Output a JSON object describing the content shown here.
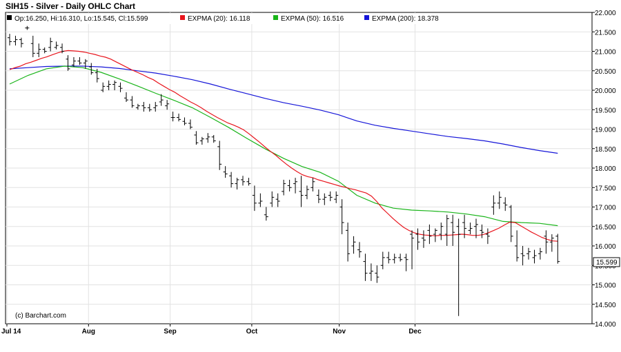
{
  "chart_data": {
    "type": "ohlc",
    "title": "SIH15 - Silver - Daily OHLC Chart",
    "legend": [
      {
        "label": "Op:16.250, Hi:16.310, Lo:15.545, Cl:15.599",
        "color": "#000000"
      },
      {
        "label": "EXPMA (20): 16.118",
        "color": "#e8141c"
      },
      {
        "label": "EXPMA (50): 16.516",
        "color": "#18b418"
      },
      {
        "label": "EXPMA (200): 18.378",
        "color": "#1414d8"
      }
    ],
    "copyright": "(c) Barchart.com",
    "last_price": "15.599",
    "ylim": [
      14.0,
      22.0
    ],
    "y_ticks": [
      "22.000",
      "21.500",
      "21.000",
      "20.500",
      "20.000",
      "19.500",
      "19.000",
      "18.500",
      "18.000",
      "17.500",
      "17.000",
      "16.500",
      "16.000",
      "15.500",
      "15.000",
      "14.500",
      "14.000"
    ],
    "x_ticks": [
      {
        "label": "Jul 14",
        "bar": 0
      },
      {
        "label": "Aug",
        "bar": 14
      },
      {
        "label": "Sep",
        "bar": 28
      },
      {
        "label": "Oct",
        "bar": 42
      },
      {
        "label": "Nov",
        "bar": 57
      },
      {
        "label": "Dec",
        "bar": 70
      }
    ],
    "grid": true,
    "bars": [
      [
        21.35,
        21.45,
        21.15,
        21.25
      ],
      [
        21.25,
        21.4,
        21.15,
        21.3
      ],
      [
        21.3,
        21.35,
        21.1,
        21.2
      ],
      [
        21.6,
        21.65,
        21.55,
        21.6
      ],
      [
        21.2,
        21.4,
        20.85,
        20.95
      ],
      [
        20.95,
        21.2,
        20.85,
        21.05
      ],
      [
        21.05,
        21.1,
        20.95,
        21.0
      ],
      [
        21.1,
        21.35,
        21.0,
        21.25
      ],
      [
        21.1,
        21.25,
        21.05,
        21.15
      ],
      [
        21.1,
        21.2,
        20.95,
        21.0
      ],
      [
        20.8,
        20.9,
        20.5,
        20.55
      ],
      [
        20.65,
        20.85,
        20.6,
        20.75
      ],
      [
        20.75,
        20.85,
        20.65,
        20.7
      ],
      [
        20.7,
        20.8,
        20.55,
        20.75
      ],
      [
        20.6,
        20.7,
        20.4,
        20.45
      ],
      [
        20.45,
        20.55,
        20.2,
        20.3
      ],
      [
        20.0,
        20.2,
        19.95,
        20.1
      ],
      [
        20.1,
        20.25,
        20.0,
        20.15
      ],
      [
        20.15,
        20.25,
        20.0,
        20.2
      ],
      [
        20.1,
        20.2,
        19.95,
        20.05
      ],
      [
        19.8,
        19.95,
        19.7,
        19.75
      ],
      [
        19.75,
        19.85,
        19.55,
        19.6
      ],
      [
        19.55,
        19.65,
        19.5,
        19.6
      ],
      [
        19.6,
        19.7,
        19.45,
        19.55
      ],
      [
        19.55,
        19.65,
        19.45,
        19.5
      ],
      [
        19.55,
        19.7,
        19.45,
        19.6
      ],
      [
        19.7,
        19.9,
        19.6,
        19.75
      ],
      [
        19.6,
        19.75,
        19.5,
        19.65
      ],
      [
        19.3,
        19.45,
        19.2,
        19.3
      ],
      [
        19.3,
        19.4,
        19.2,
        19.25
      ],
      [
        19.2,
        19.3,
        19.1,
        19.15
      ],
      [
        19.15,
        19.25,
        19.0,
        19.05
      ],
      [
        18.85,
        18.95,
        18.6,
        18.65
      ],
      [
        18.7,
        18.8,
        18.6,
        18.75
      ],
      [
        18.75,
        18.9,
        18.65,
        18.8
      ],
      [
        18.8,
        18.85,
        18.65,
        18.7
      ],
      [
        18.55,
        18.7,
        17.95,
        18.1
      ],
      [
        17.9,
        18.05,
        17.75,
        17.85
      ],
      [
        17.8,
        17.9,
        17.5,
        17.6
      ],
      [
        17.6,
        17.75,
        17.45,
        17.7
      ],
      [
        17.7,
        17.8,
        17.55,
        17.65
      ],
      [
        17.65,
        17.75,
        17.55,
        17.6
      ],
      [
        17.3,
        17.55,
        16.9,
        17.1
      ],
      [
        17.1,
        17.35,
        17.0,
        17.15
      ],
      [
        16.8,
        17.0,
        16.65,
        16.75
      ],
      [
        17.1,
        17.4,
        17.0,
        17.25
      ],
      [
        17.2,
        17.35,
        17.0,
        17.15
      ],
      [
        17.4,
        17.7,
        17.3,
        17.6
      ],
      [
        17.55,
        17.7,
        17.4,
        17.5
      ],
      [
        17.6,
        17.75,
        17.35,
        17.65
      ],
      [
        17.4,
        17.8,
        17.0,
        17.3
      ],
      [
        17.3,
        17.55,
        17.2,
        17.45
      ],
      [
        17.5,
        17.75,
        17.4,
        17.65
      ],
      [
        17.3,
        17.45,
        17.1,
        17.2
      ],
      [
        17.2,
        17.35,
        17.05,
        17.25
      ],
      [
        17.3,
        17.4,
        17.15,
        17.25
      ],
      [
        17.2,
        17.4,
        17.1,
        17.3
      ],
      [
        17.0,
        17.2,
        16.3,
        16.6
      ],
      [
        16.4,
        16.6,
        15.6,
        15.8
      ],
      [
        16.0,
        16.25,
        15.8,
        16.1
      ],
      [
        15.9,
        16.1,
        15.7,
        15.85
      ],
      [
        15.6,
        15.8,
        15.1,
        15.3
      ],
      [
        15.3,
        15.55,
        15.1,
        15.35
      ],
      [
        15.3,
        15.5,
        15.05,
        15.2
      ],
      [
        15.5,
        15.85,
        15.4,
        15.7
      ],
      [
        15.7,
        15.85,
        15.55,
        15.65
      ],
      [
        15.65,
        15.8,
        15.55,
        15.7
      ],
      [
        15.7,
        15.8,
        15.6,
        15.65
      ],
      [
        15.7,
        15.8,
        15.35,
        15.65
      ],
      [
        16.3,
        16.4,
        15.4,
        16.2
      ],
      [
        16.3,
        16.45,
        15.9,
        16.1
      ],
      [
        16.2,
        16.4,
        15.95,
        16.15
      ],
      [
        16.4,
        16.55,
        16.05,
        16.25
      ],
      [
        16.3,
        16.45,
        16.1,
        16.4
      ],
      [
        16.3,
        16.6,
        16.15,
        16.5
      ],
      [
        16.3,
        16.8,
        16.0,
        16.7
      ],
      [
        16.6,
        16.8,
        16.0,
        16.35
      ],
      [
        16.5,
        16.7,
        14.2,
        16.3
      ],
      [
        16.6,
        16.8,
        16.2,
        16.45
      ],
      [
        16.4,
        16.6,
        16.3,
        16.45
      ],
      [
        16.5,
        16.7,
        16.2,
        16.55
      ],
      [
        16.4,
        16.55,
        16.2,
        16.35
      ],
      [
        16.3,
        16.45,
        16.05,
        16.25
      ],
      [
        17.0,
        17.3,
        16.8,
        17.1
      ],
      [
        17.1,
        17.4,
        16.95,
        17.25
      ],
      [
        17.1,
        17.25,
        16.9,
        17.05
      ],
      [
        17.0,
        17.05,
        16.1,
        16.25
      ],
      [
        16.0,
        16.4,
        15.6,
        15.7
      ],
      [
        15.8,
        16.0,
        15.5,
        15.75
      ],
      [
        15.8,
        15.95,
        15.65,
        15.85
      ],
      [
        15.7,
        15.9,
        15.55,
        15.75
      ],
      [
        15.8,
        15.95,
        15.65,
        15.85
      ],
      [
        16.25,
        16.4,
        15.8,
        16.1
      ],
      [
        16.1,
        16.3,
        15.85,
        16.2
      ],
      [
        16.25,
        16.31,
        15.545,
        15.599
      ]
    ],
    "ema20": [
      20.53,
      20.58,
      20.62,
      20.68,
      20.72,
      20.77,
      20.82,
      20.86,
      20.91,
      20.96,
      21.0,
      21.02,
      21.01,
      21.0,
      20.98,
      20.95,
      20.92,
      20.88,
      20.85,
      20.8,
      20.73,
      20.66,
      20.59,
      20.52,
      20.46,
      20.4,
      20.33,
      20.27,
      20.18,
      20.1,
      20.02,
      19.95,
      19.86,
      19.78,
      19.7,
      19.63,
      19.55,
      19.46,
      19.38,
      19.3,
      19.23,
      19.16,
      19.11,
      19.05,
      18.98,
      18.88,
      18.77,
      18.66,
      18.54,
      18.43,
      18.33,
      18.21,
      18.1,
      18.0,
      17.91,
      17.83,
      17.78,
      17.75,
      17.7,
      17.66,
      17.62,
      17.58,
      17.54,
      17.51,
      17.47,
      17.44,
      17.4,
      17.36,
      17.28,
      17.14,
      16.97,
      16.84,
      16.71,
      16.59,
      16.48,
      16.4,
      16.34,
      16.3,
      16.28,
      16.27,
      16.26,
      16.27,
      16.27,
      16.28,
      16.29,
      16.3,
      16.29,
      16.27,
      16.27,
      16.29,
      16.34,
      16.4,
      16.46,
      16.54,
      16.61,
      16.6,
      16.52,
      16.44,
      16.36,
      16.29,
      16.22,
      16.17,
      16.13,
      16.12
    ],
    "ema50": [
      20.16,
      20.38,
      20.55,
      20.62,
      20.58,
      20.46,
      20.29,
      20.11,
      19.92,
      19.74,
      19.55,
      19.3,
      19.04,
      18.76,
      18.49,
      18.25,
      18.04,
      17.89,
      17.66,
      17.3,
      17.1,
      16.97,
      16.92,
      16.9,
      16.87,
      16.82,
      16.75,
      16.63,
      16.6,
      16.58,
      16.52
    ],
    "ema200": [
      20.55,
      20.58,
      20.61,
      20.62,
      20.62,
      20.6,
      20.56,
      20.5,
      20.44,
      20.36,
      20.27,
      20.16,
      20.03,
      19.91,
      19.79,
      19.68,
      19.59,
      19.49,
      19.37,
      19.21,
      19.1,
      19.02,
      18.95,
      18.88,
      18.81,
      18.76,
      18.7,
      18.62,
      18.53,
      18.45,
      18.38
    ]
  }
}
